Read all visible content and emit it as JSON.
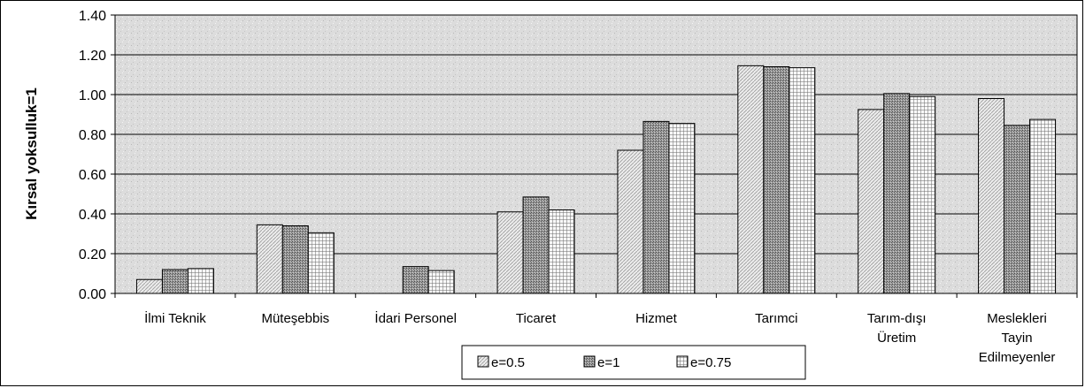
{
  "chart_data": {
    "type": "bar",
    "title": "",
    "xlabel": "",
    "ylabel": "Kırsal yoksulluk=1",
    "ylim": [
      0,
      1.4
    ],
    "yticks": [
      "0.00",
      "0.20",
      "0.40",
      "0.60",
      "0.80",
      "1.00",
      "1.20",
      "1.40"
    ],
    "grid": true,
    "legend_position": "bottom",
    "categories": [
      [
        "İlmi Teknik"
      ],
      [
        "Müteşebbis"
      ],
      [
        "İdari Personel"
      ],
      [
        "Ticaret"
      ],
      [
        "Hizmet"
      ],
      [
        "Tarımci"
      ],
      [
        "Tarım-dışı",
        "Üretim"
      ],
      [
        "Meslekleri",
        "Tayin",
        "Edilmeyenler"
      ]
    ],
    "series": [
      {
        "name": "e=0.5",
        "pattern": "diagonal-light",
        "values": [
          0.07,
          0.345,
          0.0,
          0.41,
          0.72,
          1.145,
          0.925,
          0.98
        ]
      },
      {
        "name": "e=1",
        "pattern": "dense-dark",
        "values": [
          0.12,
          0.34,
          0.135,
          0.485,
          0.865,
          1.14,
          1.005,
          0.845
        ]
      },
      {
        "name": "e=0.75",
        "pattern": "grid",
        "values": [
          0.125,
          0.305,
          0.115,
          0.42,
          0.855,
          1.135,
          0.99,
          0.875
        ]
      }
    ],
    "colors": {
      "plot_background": "#dedede",
      "gridline": "#000000",
      "bar_fill_light": "#e8e8e8",
      "bar_fill_dark": "#8a8a8a",
      "bar_fill_grid": "#f4f4f4"
    }
  }
}
